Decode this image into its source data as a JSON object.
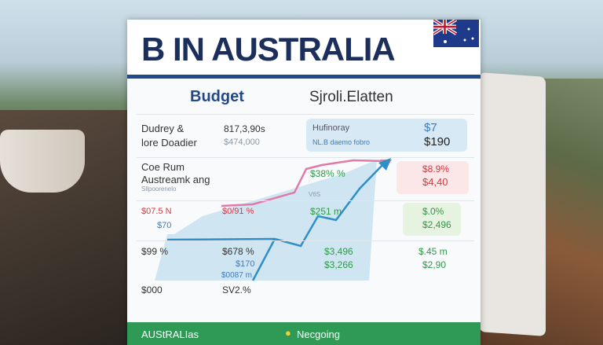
{
  "header": {
    "title": "B IN AUSTRALIA",
    "flag_icon": "australian-flag-icon"
  },
  "section": {
    "col1": "Budget",
    "col2": "Sjroli.Elatten"
  },
  "row1": {
    "label1": "Dudrey &",
    "label2": "lore Doadier",
    "val1": "817,3,90s",
    "val2": "$474,000",
    "box_label1": "Hufinoray",
    "box_label2": "NL.B daemo fobro",
    "box_val1": "$7",
    "box_val2": "$190"
  },
  "row2": {
    "label1": "Coe Rum",
    "label2": "Austreamk ang",
    "sub": "Sllpoorenelo",
    "green": "$38% %",
    "small": "V6S",
    "box_val1": "$8.9%",
    "box_val2": "$4,40"
  },
  "row3": {
    "a": "$07.5 N",
    "b": "$0/91 %",
    "c": "$251 m",
    "d": "$70",
    "box_val1": "$.0%",
    "box_val2": "$2,496"
  },
  "row4": {
    "a": "$99 %",
    "b": "$678 %",
    "c": "$3,496",
    "d": "$.45 m",
    "e": "$170",
    "f": "$3,266",
    "g": "$2,90",
    "h": "$0087 m"
  },
  "row5": {
    "a": "$000",
    "b": "SV2.%"
  },
  "footer": {
    "left": "AUStRALIas",
    "right": "Necgoing",
    "icon": "coin-icon"
  },
  "colors": {
    "navy": "#1b2e5c",
    "green": "#2f9a55",
    "red": "#d9363e",
    "blue": "#3b7cc0",
    "pink": "#e07aa6"
  }
}
